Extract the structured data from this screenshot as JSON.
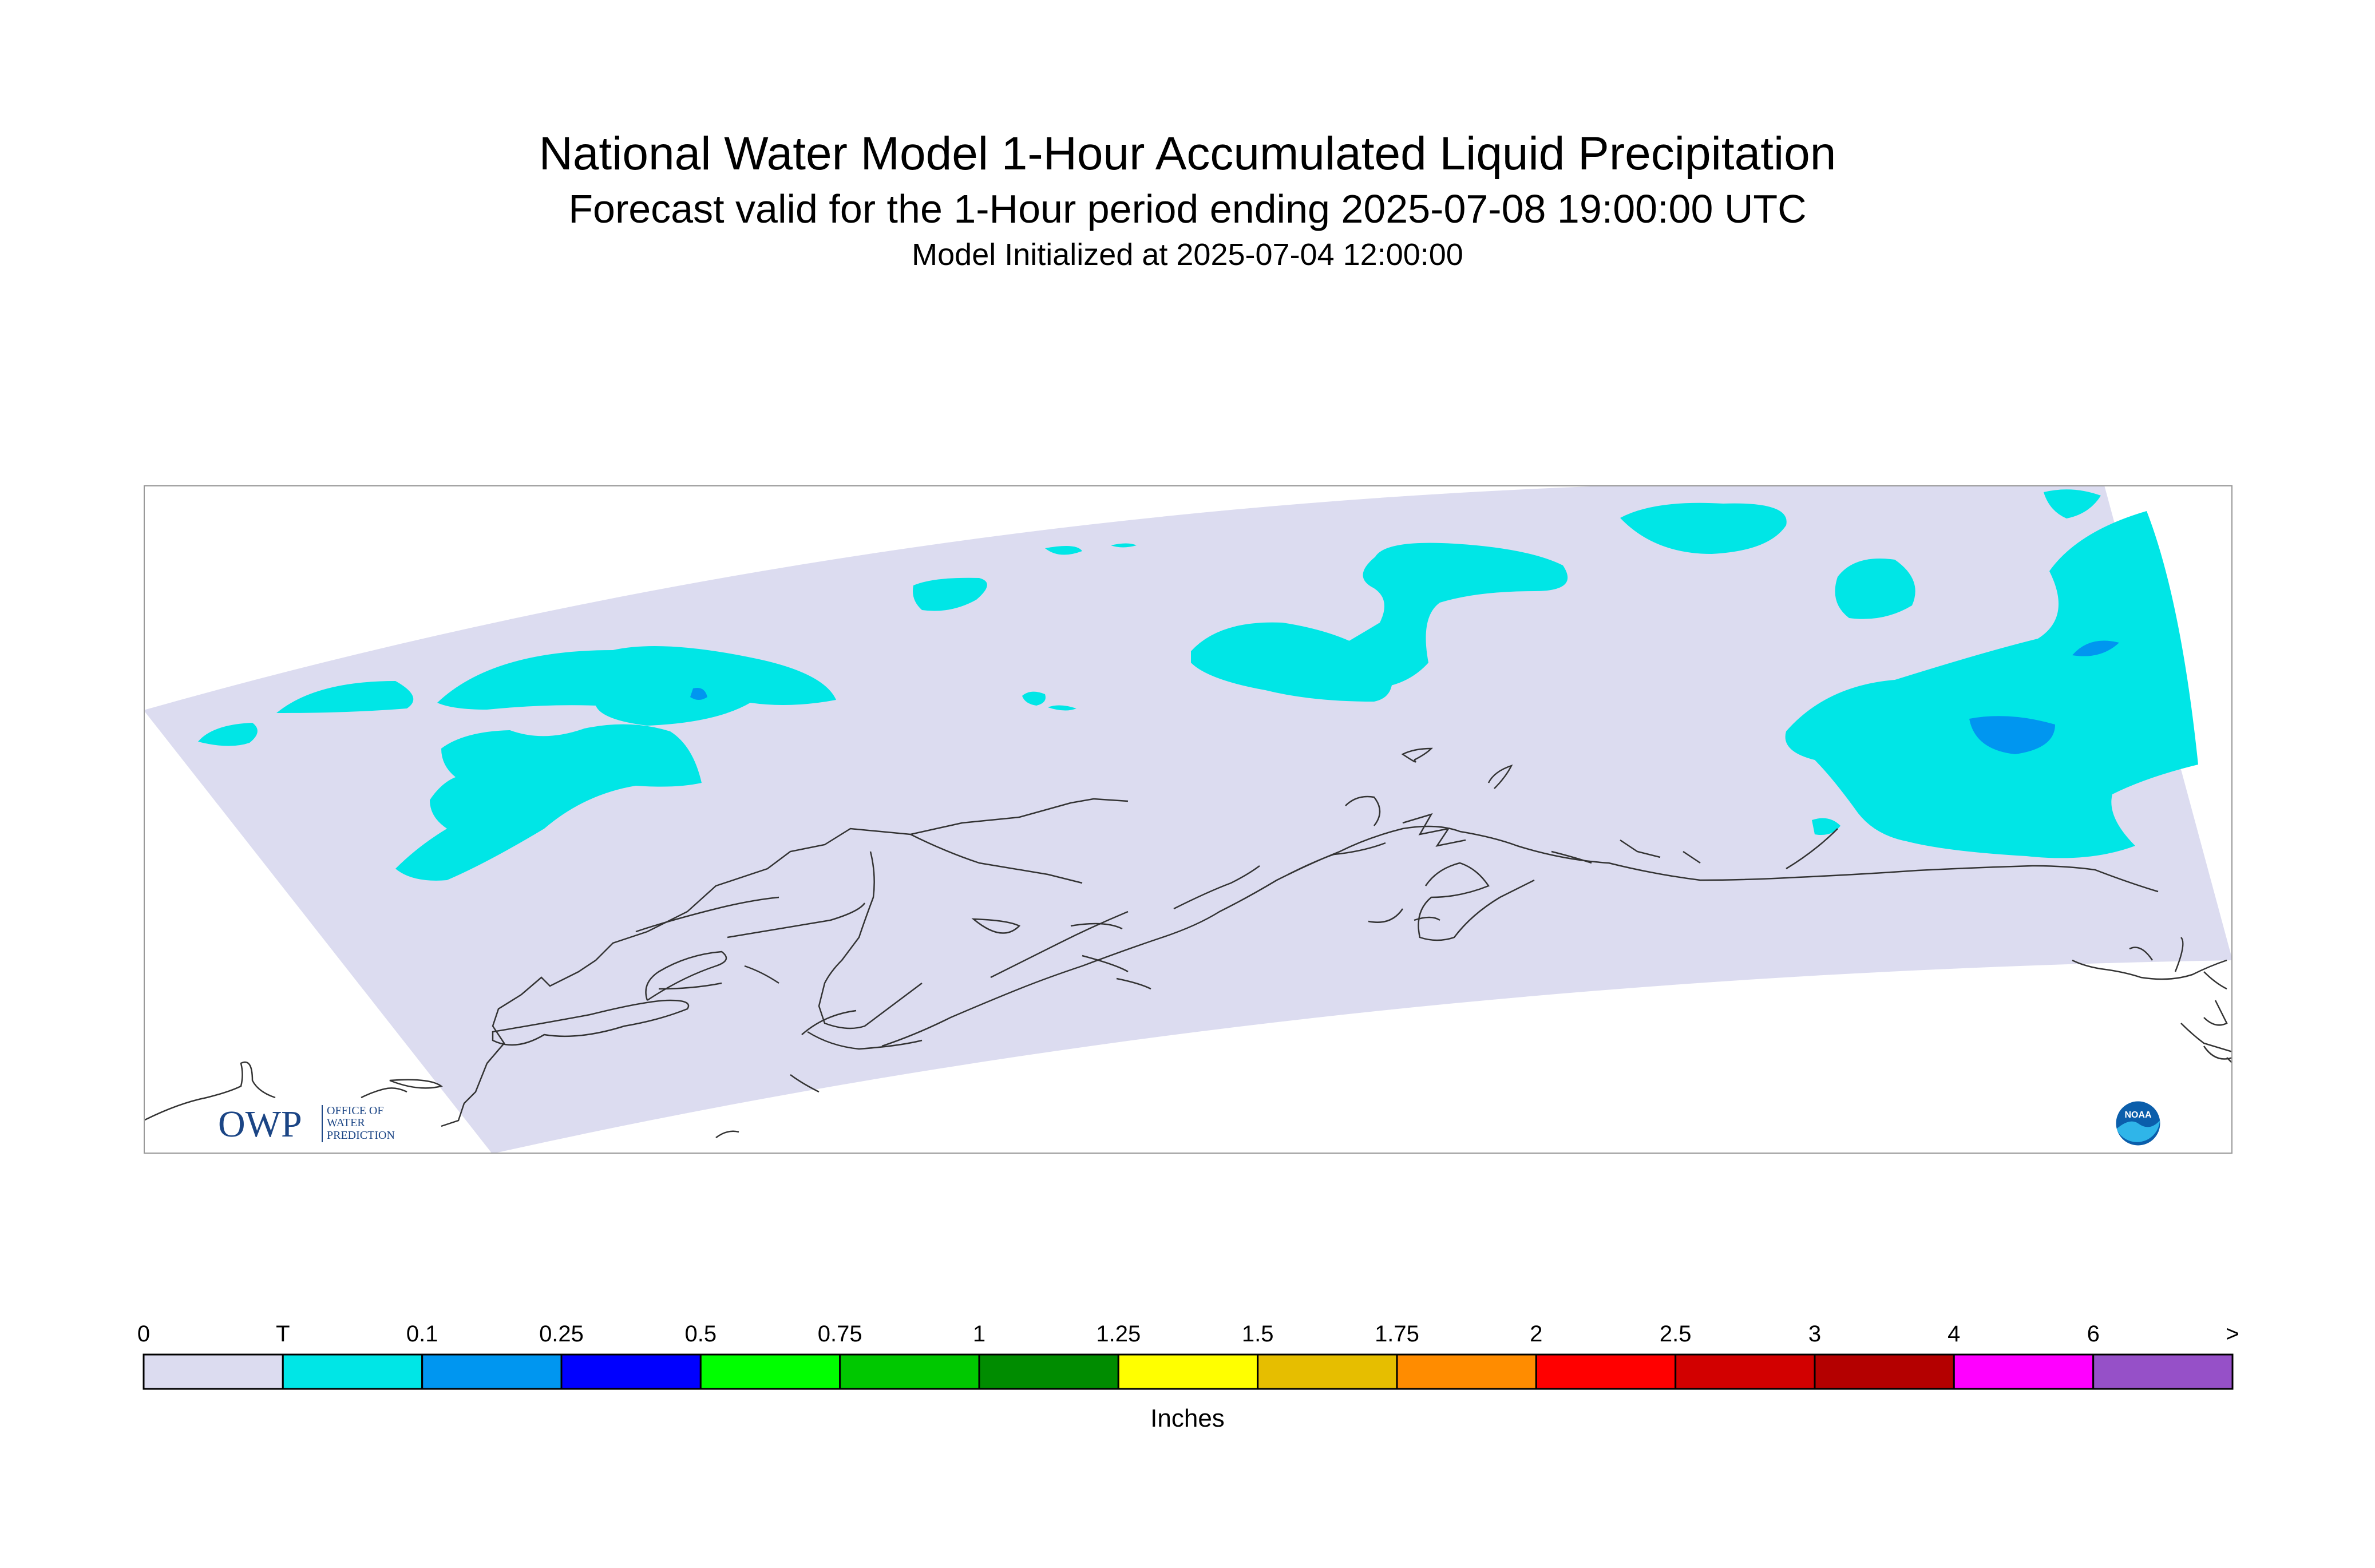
{
  "header": {
    "title": "National Water Model 1-Hour Accumulated Liquid Precipitation",
    "subtitle": "Forecast valid for the 1-Hour period ending 2025-07-08 19:00:00 UTC",
    "init": "Model Initialized at 2025-07-04 12:00:00"
  },
  "logos": {
    "owp": {
      "letters": "OWP",
      "line1": "OFFICE OF",
      "line2": "WATER",
      "line3": "PREDICTION"
    },
    "noaa": {
      "text": "NOAA"
    }
  },
  "legend": {
    "units": "Inches",
    "labels": [
      "0",
      "T",
      "0.1",
      "0.25",
      "0.5",
      "0.75",
      "1",
      "1.25",
      "1.5",
      "1.75",
      "2",
      "2.5",
      "3",
      "4",
      "6",
      ">"
    ],
    "colors": [
      "#dcdcf0",
      "#00e6e6",
      "#0096f0",
      "#0000ff",
      "#00ff00",
      "#00c800",
      "#008c00",
      "#ffff00",
      "#e6be00",
      "#ff8c00",
      "#ff0000",
      "#d20000",
      "#b40000",
      "#ff00ff",
      "#9650c8"
    ]
  },
  "colors": {
    "domain_fill": "#dcdcf0",
    "trace": "#00e6e6",
    "light": "#0096f0",
    "coastline": "#333333",
    "frame": "#999999"
  }
}
